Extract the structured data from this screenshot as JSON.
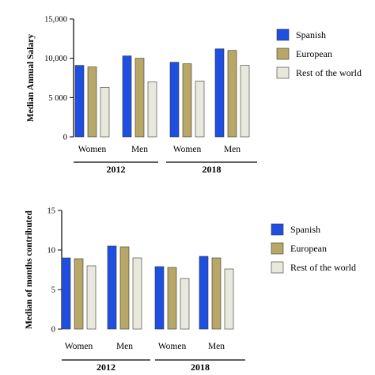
{
  "colors": {
    "spanish": "#1f4fe0",
    "european": "#b9a768",
    "rest": "#e8e8dc"
  },
  "chart_data": [
    {
      "type": "bar",
      "ylabel": "Median Annual Salary",
      "ylim": [
        0,
        15000
      ],
      "yticks": [
        0,
        5000,
        10000,
        15000
      ],
      "ytick_labels": [
        "0",
        "5 000",
        "10,000",
        "15,000"
      ],
      "legend_position": "right",
      "categories": [
        "Women",
        "Men",
        "Women",
        "Men"
      ],
      "groups": [
        {
          "label": "2012",
          "categories": [
            "Women",
            "Men"
          ]
        },
        {
          "label": "2018",
          "categories": [
            "Women",
            "Men"
          ]
        }
      ],
      "series": [
        {
          "name": "Spanish",
          "color": "#1f4fe0",
          "values": [
            9100,
            10300,
            9500,
            11200
          ]
        },
        {
          "name": "European",
          "color": "#b9a768",
          "values": [
            8900,
            10000,
            9300,
            11000
          ]
        },
        {
          "name": "Rest of the world",
          "color": "#e8e8dc",
          "values": [
            6300,
            7000,
            7100,
            9100
          ]
        }
      ]
    },
    {
      "type": "bar",
      "ylabel": "Median of months contributed",
      "ylim": [
        0,
        15
      ],
      "yticks": [
        0,
        5,
        10,
        15
      ],
      "ytick_labels": [
        "0",
        "5",
        "10",
        "15"
      ],
      "legend_position": "right",
      "categories": [
        "Women",
        "Men",
        "Women",
        "Men"
      ],
      "groups": [
        {
          "label": "2012",
          "categories": [
            "Women",
            "Men"
          ]
        },
        {
          "label": "2018",
          "categories": [
            "Women",
            "Men"
          ]
        }
      ],
      "series": [
        {
          "name": "Spanish",
          "color": "#1f4fe0",
          "values": [
            9.0,
            10.5,
            7.9,
            9.2
          ]
        },
        {
          "name": "European",
          "color": "#b9a768",
          "values": [
            8.9,
            10.4,
            7.8,
            9.0
          ]
        },
        {
          "name": "Rest of the world",
          "color": "#e8e8dc",
          "values": [
            8.0,
            9.0,
            6.4,
            7.6
          ]
        }
      ]
    }
  ]
}
